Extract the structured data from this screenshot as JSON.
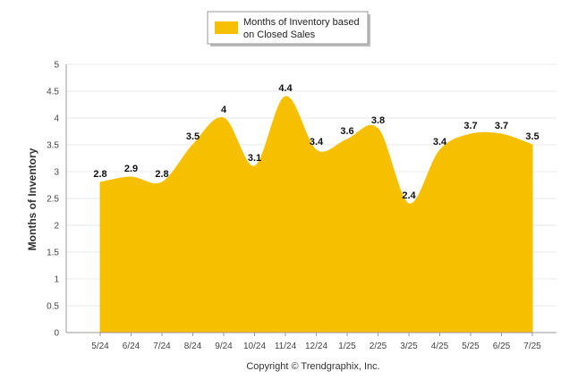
{
  "chart_data": {
    "type": "area",
    "categories": [
      "5/24",
      "6/24",
      "7/24",
      "8/24",
      "9/24",
      "10/24",
      "11/24",
      "12/24",
      "1/25",
      "2/25",
      "3/25",
      "4/25",
      "5/25",
      "6/25",
      "7/25"
    ],
    "series": [
      {
        "name": "Months of Inventory based on Closed Sales",
        "values": [
          2.8,
          2.9,
          2.8,
          3.5,
          4,
          3.1,
          4.4,
          3.4,
          3.6,
          3.8,
          2.4,
          3.4,
          3.7,
          3.7,
          3.5
        ],
        "labels": [
          "2.8",
          "2.9",
          "2.8",
          "3.5",
          "4",
          "3.1",
          "4.4",
          "3.4",
          "3.6",
          "3.8",
          "2.4",
          "3.4",
          "3.7",
          "3.7",
          "3.5"
        ],
        "color": "#f6c000"
      }
    ],
    "legend": {
      "lines": [
        "Months of Inventory based",
        "on Closed Sales"
      ],
      "placement": "top-center"
    },
    "ylabel": "Months of Inventory",
    "xlabel": "",
    "ylim": [
      0,
      5
    ],
    "yticks": [
      0,
      0.5,
      1,
      1.5,
      2,
      2.5,
      3,
      3.5,
      4,
      4.5,
      5
    ],
    "ytick_labels": [
      "0",
      "0.5",
      "1",
      "1.5",
      "2",
      "2.5",
      "3",
      "3.5",
      "4",
      "4.5",
      "5"
    ],
    "grid": true,
    "grid_color": "#e8e8e8"
  },
  "footer": {
    "copyright": "Copyright © Trendgraphix, Inc."
  }
}
